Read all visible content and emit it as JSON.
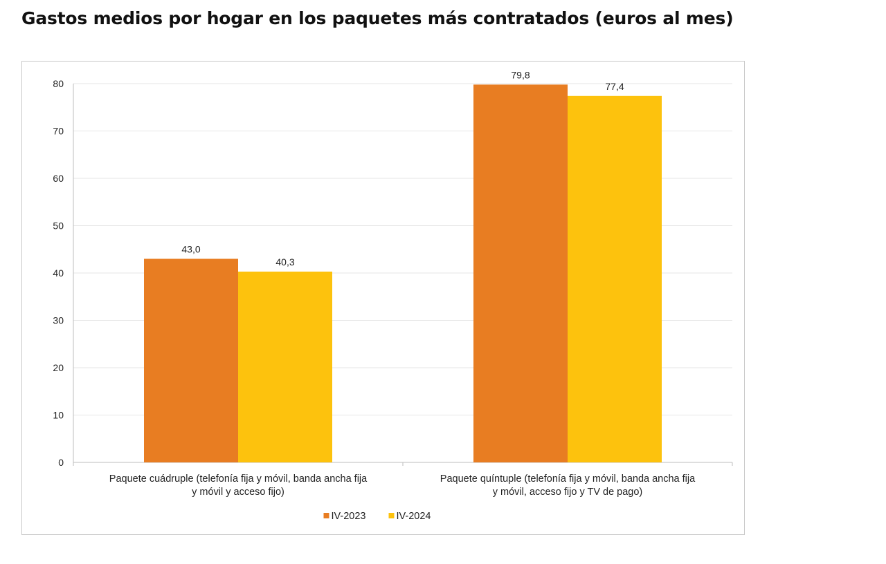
{
  "title": "Gastos medios por hogar en los paquetes más contratados (euros al mes)",
  "chart_data": {
    "type": "bar",
    "categories": [
      [
        "Paquete cuádruple (telefonía fija y móvil, banda ancha fija",
        "y móvil y acceso fijo)"
      ],
      [
        "Paquete quíntuple (telefonía fija y móvil, banda ancha fija",
        "y móvil, acceso fijo y TV de pago)"
      ]
    ],
    "series": [
      {
        "name": "IV-2023",
        "color": "#E87D22",
        "values": [
          43.0,
          79.8
        ],
        "labels": [
          "43,0",
          "79,8"
        ]
      },
      {
        "name": "IV-2024",
        "color": "#FDC20D",
        "values": [
          40.3,
          77.4
        ],
        "labels": [
          "40,3",
          "77,4"
        ]
      }
    ],
    "ylim": [
      0,
      80
    ],
    "yticks": [
      0,
      10,
      20,
      30,
      40,
      50,
      60,
      70,
      80
    ],
    "grid": true,
    "legend": "bottom-center",
    "xlabel": "",
    "ylabel": ""
  }
}
